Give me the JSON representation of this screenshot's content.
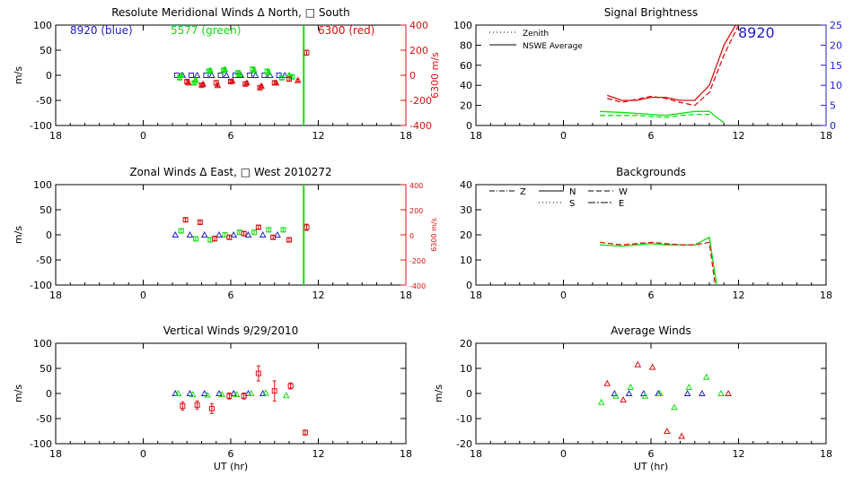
{
  "colors": {
    "blue": "#2020c8",
    "green": "#10e010",
    "red": "#d81010",
    "black": "#000000"
  },
  "chart_data": [
    {
      "id": "meridional",
      "type": "scatter",
      "title": "Resolute Meridional Winds Δ North, □ South",
      "xlabel": "",
      "ylabel": "m/s",
      "y2label": "6300 m/s",
      "xticks": [
        "18",
        "0",
        "6",
        "12",
        "18"
      ],
      "xlim": [
        -6,
        18
      ],
      "ylim": [
        -100,
        100
      ],
      "y2lim": [
        -400,
        400
      ],
      "yticks": [
        "-100",
        "-50",
        "0",
        "50",
        "100"
      ],
      "y2ticks": [
        "-400",
        "-200",
        "0",
        "200",
        "400"
      ],
      "legend": [
        "8920 (blue)",
        "5577 (green)",
        "6300 (red)"
      ],
      "vline": {
        "x": 11,
        "color": "green"
      },
      "series": [
        {
          "name": "8920",
          "color": "blue",
          "marker": "square",
          "x": [
            2.3,
            3.3,
            4.3,
            5.3,
            6.3,
            7.3,
            8.3,
            9.3
          ],
          "y": [
            0,
            0,
            0,
            0,
            0,
            0,
            0,
            0
          ]
        },
        {
          "name": "8920 north",
          "color": "blue",
          "marker": "triangle",
          "x": [
            2.7,
            3.7,
            4.7,
            5.7,
            6.7,
            7.7,
            8.7,
            9.7
          ],
          "y": [
            0,
            0,
            0,
            0,
            0,
            0,
            0,
            0
          ]
        },
        {
          "name": "5577",
          "color": "green",
          "marker": "square",
          "x": [
            2.5,
            3.5,
            4.5,
            5.5,
            6.5,
            7.5,
            8.5,
            9.5,
            10.2
          ],
          "y": [
            -5,
            -15,
            8,
            10,
            5,
            12,
            8,
            -5,
            -3
          ],
          "err": [
            3,
            3,
            3,
            3,
            3,
            3,
            3,
            3,
            3
          ]
        },
        {
          "name": "5577 north",
          "color": "green",
          "marker": "triangle",
          "x": [
            2.6,
            3.6,
            4.6,
            5.6,
            6.6,
            7.6,
            8.6,
            10
          ],
          "y": [
            0,
            -10,
            10,
            12,
            2,
            10,
            6,
            0
          ],
          "err": [
            3,
            3,
            3,
            3,
            3,
            3,
            3,
            3
          ]
        },
        {
          "name": "6300",
          "color": "red",
          "marker": "square",
          "x": [
            3.0,
            4.0,
            5.0,
            6.0,
            7.0,
            8.0,
            9.0,
            10.0,
            11.2
          ],
          "y": [
            -50,
            -80,
            -60,
            -50,
            -70,
            -100,
            -60,
            -30,
            180
          ],
          "err": [
            10,
            10,
            20,
            10,
            15,
            15,
            15,
            15,
            20
          ],
          "axis": "y2"
        },
        {
          "name": "6300 north",
          "color": "red",
          "marker": "triangle",
          "x": [
            3.1,
            4.1,
            5.1,
            6.1,
            7.1,
            8.1,
            9.1,
            10.6
          ],
          "y": [
            -60,
            -70,
            -80,
            -45,
            -60,
            -85,
            -60,
            -40
          ],
          "err": [
            10,
            10,
            10,
            10,
            10,
            10,
            10,
            10
          ],
          "axis": "y2"
        }
      ]
    },
    {
      "id": "brightness",
      "type": "line",
      "title": "Signal Brightness",
      "xlabel": "",
      "ylabel": "",
      "xticks": [
        "18",
        "0",
        "6",
        "12",
        "18"
      ],
      "xlim": [
        -6,
        18
      ],
      "ylim": [
        0,
        100
      ],
      "y2lim": [
        0,
        25
      ],
      "yticks": [
        "0",
        "20",
        "40",
        "60",
        "80",
        "100"
      ],
      "y2ticks": [
        "0",
        "5",
        "10",
        "15",
        "20",
        "25"
      ],
      "legend": [
        "Zenith",
        "NSWE Average"
      ],
      "annotation": "8920",
      "series": [
        {
          "name": "6300 NSWE",
          "color": "red",
          "style": "solid",
          "x": [
            3,
            4,
            5,
            6,
            7,
            8,
            9,
            10,
            11,
            11.8
          ],
          "y": [
            30,
            25,
            25,
            28,
            28,
            25,
            25,
            40,
            80,
            100
          ]
        },
        {
          "name": "6300 Zenith",
          "color": "red",
          "style": "dashed",
          "x": [
            3,
            4,
            5,
            6,
            7,
            8,
            9,
            10,
            11,
            12
          ],
          "y": [
            27,
            23,
            26,
            29,
            27,
            23,
            20,
            33,
            70,
            100
          ]
        },
        {
          "name": "5577 NSWE",
          "color": "green",
          "style": "solid",
          "x": [
            2.5,
            4,
            5,
            6,
            7,
            8,
            9,
            10,
            10.5,
            11
          ],
          "y": [
            14,
            13,
            12,
            11,
            10,
            12,
            14,
            14,
            8,
            3
          ]
        },
        {
          "name": "5577 Zenith",
          "color": "green",
          "style": "dashed",
          "x": [
            2.5,
            4,
            5,
            6,
            7,
            8,
            9,
            10
          ],
          "y": [
            10,
            10,
            10,
            9,
            8,
            10,
            11,
            11
          ]
        }
      ]
    },
    {
      "id": "zonal",
      "type": "scatter",
      "title": "Zonal Winds Δ East, □ West 2010272",
      "xlabel": "",
      "ylabel": "m/s",
      "y2label": "6300 m/s",
      "xticks": [
        "18",
        "0",
        "6",
        "12",
        "18"
      ],
      "xlim": [
        -6,
        18
      ],
      "ylim": [
        -100,
        100
      ],
      "y2lim": [
        -400,
        400
      ],
      "yticks": [
        "-100",
        "-50",
        "0",
        "50",
        "100"
      ],
      "y2ticks": [
        "-400",
        "-200",
        "0",
        "200",
        "400"
      ],
      "vline": {
        "x": 11,
        "color": "green"
      },
      "series": [
        {
          "name": "8920",
          "color": "blue",
          "marker": "triangle",
          "x": [
            2.2,
            3.2,
            4.2,
            5.2,
            6.2,
            7.2,
            8.2,
            9.2
          ],
          "y": [
            0,
            0,
            0,
            0,
            0,
            0,
            0,
            0
          ]
        },
        {
          "name": "5577",
          "color": "green",
          "marker": "square",
          "x": [
            2.6,
            3.6,
            4.6,
            5.6,
            6.6,
            7.6,
            8.6,
            9.6
          ],
          "y": [
            8,
            -8,
            -10,
            0,
            5,
            5,
            10,
            10
          ],
          "err": [
            4,
            4,
            4,
            4,
            4,
            4,
            4,
            4
          ]
        },
        {
          "name": "6300",
          "color": "red",
          "marker": "square",
          "x": [
            2.9,
            3.9,
            4.9,
            5.9,
            6.9,
            7.9,
            8.9,
            10,
            11.2
          ],
          "y": [
            120,
            100,
            -30,
            -20,
            10,
            60,
            -20,
            -40,
            60
          ],
          "err": [
            15,
            15,
            20,
            15,
            15,
            15,
            15,
            15,
            25
          ],
          "axis": "y2"
        }
      ]
    },
    {
      "id": "backgrounds",
      "type": "line",
      "title": "Backgrounds",
      "xlabel": "",
      "ylabel": "",
      "xticks": [
        "18",
        "0",
        "6",
        "12",
        "18"
      ],
      "xlim": [
        -6,
        18
      ],
      "ylim": [
        0,
        40
      ],
      "yticks": [
        "0",
        "10",
        "20",
        "30",
        "40"
      ],
      "legend": [
        "Z",
        "N",
        "W",
        "S",
        "E"
      ],
      "series": [
        {
          "name": "green",
          "color": "green",
          "style": "solid",
          "x": [
            2.5,
            4,
            5,
            6,
            7,
            8,
            9,
            10,
            10.5
          ],
          "y": [
            16,
            15.5,
            16,
            16.5,
            16,
            16,
            16,
            19,
            0
          ]
        },
        {
          "name": "red",
          "color": "red",
          "style": "dashed",
          "x": [
            2.5,
            4,
            5,
            6,
            7,
            8,
            9,
            10,
            10.4
          ],
          "y": [
            17,
            16,
            16.5,
            17,
            16.5,
            16,
            16,
            17,
            0
          ]
        }
      ]
    },
    {
      "id": "vertical",
      "type": "scatter",
      "title": "Vertical Winds 9/29/2010",
      "xlabel": "UT (hr)",
      "ylabel": "m/s",
      "xticks": [
        "18",
        "0",
        "6",
        "12",
        "18"
      ],
      "xlim": [
        -6,
        18
      ],
      "ylim": [
        -100,
        100
      ],
      "yticks": [
        "-100",
        "-50",
        "0",
        "50",
        "100"
      ],
      "series": [
        {
          "name": "8920",
          "color": "blue",
          "marker": "triangle",
          "x": [
            2.2,
            3.2,
            4.2,
            5.2,
            6.2,
            7.2,
            8.2
          ],
          "y": [
            0,
            0,
            0,
            0,
            0,
            0,
            0
          ]
        },
        {
          "name": "5577",
          "color": "green",
          "marker": "triangle",
          "x": [
            2.4,
            3.4,
            4.4,
            5.4,
            6.4,
            7.4,
            8.4,
            9.8
          ],
          "y": [
            0,
            -2,
            -3,
            -2,
            -2,
            0,
            1,
            -4
          ]
        },
        {
          "name": "6300",
          "color": "red",
          "marker": "square",
          "x": [
            2.7,
            3.7,
            4.7,
            5.9,
            6.9,
            7.9,
            9.0,
            10.1,
            11.1
          ],
          "y": [
            -25,
            -23,
            -30,
            -5,
            -5,
            40,
            5,
            15,
            -78
          ],
          "err": [
            8,
            8,
            10,
            6,
            6,
            15,
            20,
            6,
            5
          ]
        }
      ]
    },
    {
      "id": "average",
      "type": "scatter",
      "title": "Average Winds",
      "xlabel": "UT (hr)",
      "ylabel": "m/s",
      "xticks": [
        "18",
        "0",
        "6",
        "12",
        "18"
      ],
      "xlim": [
        -6,
        18
      ],
      "ylim": [
        -20,
        20
      ],
      "yticks": [
        "-20",
        "-10",
        "0",
        "10",
        "20"
      ],
      "series": [
        {
          "name": "8920",
          "color": "blue",
          "marker": "triangle",
          "x": [
            3.5,
            4.5,
            5.5,
            6.5,
            8.5,
            9.5
          ],
          "y": [
            0,
            0,
            0,
            0,
            0,
            0
          ]
        },
        {
          "name": "5577",
          "color": "green",
          "marker": "triangle",
          "x": [
            2.6,
            3.6,
            4.6,
            5.6,
            6.6,
            7.6,
            8.6,
            9.8,
            10.8
          ],
          "y": [
            -3.5,
            -1,
            2.5,
            -1,
            0,
            -5.5,
            2.5,
            6.5,
            0
          ]
        },
        {
          "name": "6300",
          "color": "red",
          "marker": "triangle",
          "x": [
            3.0,
            4.1,
            5.1,
            6.1,
            7.1,
            8.1,
            11.3
          ],
          "y": [
            4,
            -2.5,
            11.5,
            10.5,
            -15,
            -17,
            0
          ]
        }
      ]
    }
  ]
}
